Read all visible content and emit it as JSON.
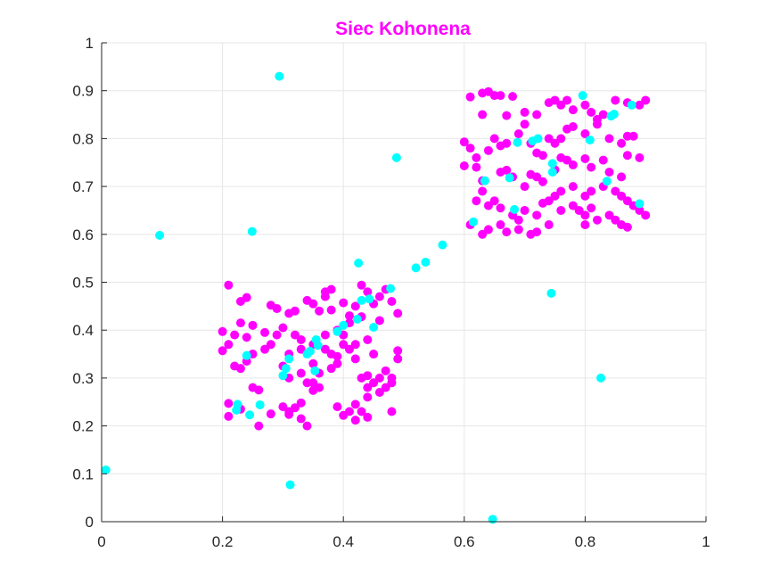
{
  "chart_data": {
    "type": "scatter",
    "title": "Siec Kohonena",
    "title_color": "#ff00ff",
    "xlim": [
      0,
      1
    ],
    "ylim": [
      0,
      1
    ],
    "grid": true,
    "x_ticks": [
      "0",
      "0.2",
      "0.4",
      "0.6",
      "0.8",
      "1"
    ],
    "y_ticks": [
      "0",
      "0.1",
      "0.2",
      "0.3",
      "0.4",
      "0.5",
      "0.6",
      "0.7",
      "0.8",
      "0.9",
      "1"
    ],
    "series": [
      {
        "color": "#ff00ff",
        "points": [
          [
            0.21,
            0.494
          ],
          [
            0.23,
            0.46
          ],
          [
            0.24,
            0.468
          ],
          [
            0.2,
            0.397
          ],
          [
            0.2,
            0.357
          ],
          [
            0.22,
            0.39
          ],
          [
            0.21,
            0.37
          ],
          [
            0.23,
            0.415
          ],
          [
            0.25,
            0.41
          ],
          [
            0.24,
            0.385
          ],
          [
            0.27,
            0.395
          ],
          [
            0.28,
            0.37
          ],
          [
            0.29,
            0.39
          ],
          [
            0.28,
            0.452
          ],
          [
            0.29,
            0.445
          ],
          [
            0.31,
            0.435
          ],
          [
            0.32,
            0.44
          ],
          [
            0.3,
            0.405
          ],
          [
            0.32,
            0.39
          ],
          [
            0.33,
            0.38
          ],
          [
            0.34,
            0.462
          ],
          [
            0.35,
            0.455
          ],
          [
            0.36,
            0.44
          ],
          [
            0.37,
            0.48
          ],
          [
            0.38,
            0.485
          ],
          [
            0.37,
            0.47
          ],
          [
            0.38,
            0.442
          ],
          [
            0.4,
            0.457
          ],
          [
            0.41,
            0.43
          ],
          [
            0.42,
            0.45
          ],
          [
            0.43,
            0.494
          ],
          [
            0.44,
            0.48
          ],
          [
            0.46,
            0.47
          ],
          [
            0.47,
            0.485
          ],
          [
            0.48,
            0.46
          ],
          [
            0.49,
            0.435
          ],
          [
            0.45,
            0.455
          ],
          [
            0.46,
            0.42
          ],
          [
            0.43,
            0.428
          ],
          [
            0.41,
            0.415
          ],
          [
            0.39,
            0.4
          ],
          [
            0.37,
            0.39
          ],
          [
            0.35,
            0.37
          ],
          [
            0.33,
            0.36
          ],
          [
            0.31,
            0.35
          ],
          [
            0.3,
            0.325
          ],
          [
            0.31,
            0.3
          ],
          [
            0.33,
            0.31
          ],
          [
            0.34,
            0.29
          ],
          [
            0.35,
            0.33
          ],
          [
            0.36,
            0.31
          ],
          [
            0.38,
            0.32
          ],
          [
            0.39,
            0.345
          ],
          [
            0.37,
            0.36
          ],
          [
            0.39,
            0.33
          ],
          [
            0.4,
            0.39
          ],
          [
            0.42,
            0.37
          ],
          [
            0.41,
            0.36
          ],
          [
            0.44,
            0.38
          ],
          [
            0.45,
            0.35
          ],
          [
            0.42,
            0.34
          ],
          [
            0.43,
            0.3
          ],
          [
            0.44,
            0.305
          ],
          [
            0.45,
            0.29
          ],
          [
            0.46,
            0.3
          ],
          [
            0.47,
            0.28
          ],
          [
            0.48,
            0.29
          ],
          [
            0.49,
            0.34
          ],
          [
            0.47,
            0.315
          ],
          [
            0.49,
            0.357
          ],
          [
            0.44,
            0.28
          ],
          [
            0.46,
            0.27
          ],
          [
            0.22,
            0.325
          ],
          [
            0.23,
            0.32
          ],
          [
            0.24,
            0.335
          ],
          [
            0.25,
            0.35
          ],
          [
            0.27,
            0.36
          ],
          [
            0.26,
            0.275
          ],
          [
            0.21,
            0.247
          ],
          [
            0.21,
            0.22
          ],
          [
            0.23,
            0.235
          ],
          [
            0.25,
            0.28
          ],
          [
            0.26,
            0.2
          ],
          [
            0.28,
            0.225
          ],
          [
            0.3,
            0.24
          ],
          [
            0.31,
            0.23
          ],
          [
            0.32,
            0.238
          ],
          [
            0.31,
            0.224
          ],
          [
            0.33,
            0.248
          ],
          [
            0.33,
            0.215
          ],
          [
            0.35,
            0.274
          ],
          [
            0.35,
            0.29
          ],
          [
            0.34,
            0.2
          ],
          [
            0.36,
            0.28
          ],
          [
            0.39,
            0.24
          ],
          [
            0.4,
            0.222
          ],
          [
            0.41,
            0.23
          ],
          [
            0.42,
            0.245
          ],
          [
            0.42,
            0.212
          ],
          [
            0.44,
            0.218
          ],
          [
            0.43,
            0.23
          ],
          [
            0.48,
            0.23
          ],
          [
            0.44,
            0.26
          ],
          [
            0.48,
            0.3
          ],
          [
            0.4,
            0.37
          ],
          [
            0.38,
            0.35
          ],
          [
            0.61,
            0.887
          ],
          [
            0.63,
            0.895
          ],
          [
            0.64,
            0.898
          ],
          [
            0.65,
            0.89
          ],
          [
            0.66,
            0.89
          ],
          [
            0.63,
            0.85
          ],
          [
            0.68,
            0.888
          ],
          [
            0.7,
            0.855
          ],
          [
            0.67,
            0.848
          ],
          [
            0.72,
            0.85
          ],
          [
            0.74,
            0.875
          ],
          [
            0.75,
            0.88
          ],
          [
            0.76,
            0.87
          ],
          [
            0.77,
            0.88
          ],
          [
            0.78,
            0.86
          ],
          [
            0.8,
            0.87
          ],
          [
            0.81,
            0.855
          ],
          [
            0.82,
            0.84
          ],
          [
            0.83,
            0.85
          ],
          [
            0.85,
            0.88
          ],
          [
            0.87,
            0.875
          ],
          [
            0.89,
            0.87
          ],
          [
            0.9,
            0.88
          ],
          [
            0.6,
            0.793
          ],
          [
            0.61,
            0.78
          ],
          [
            0.62,
            0.76
          ],
          [
            0.64,
            0.775
          ],
          [
            0.65,
            0.8
          ],
          [
            0.66,
            0.785
          ],
          [
            0.67,
            0.79
          ],
          [
            0.69,
            0.81
          ],
          [
            0.7,
            0.83
          ],
          [
            0.71,
            0.79
          ],
          [
            0.72,
            0.77
          ],
          [
            0.73,
            0.765
          ],
          [
            0.74,
            0.8
          ],
          [
            0.75,
            0.79
          ],
          [
            0.76,
            0.8
          ],
          [
            0.77,
            0.82
          ],
          [
            0.78,
            0.825
          ],
          [
            0.8,
            0.81
          ],
          [
            0.82,
            0.83
          ],
          [
            0.84,
            0.8
          ],
          [
            0.86,
            0.79
          ],
          [
            0.87,
            0.805
          ],
          [
            0.88,
            0.805
          ],
          [
            0.87,
            0.765
          ],
          [
            0.89,
            0.76
          ],
          [
            0.6,
            0.743
          ],
          [
            0.62,
            0.74
          ],
          [
            0.63,
            0.712
          ],
          [
            0.66,
            0.73
          ],
          [
            0.67,
            0.734
          ],
          [
            0.68,
            0.72
          ],
          [
            0.7,
            0.7
          ],
          [
            0.71,
            0.725
          ],
          [
            0.72,
            0.72
          ],
          [
            0.73,
            0.71
          ],
          [
            0.75,
            0.735
          ],
          [
            0.76,
            0.76
          ],
          [
            0.77,
            0.755
          ],
          [
            0.78,
            0.745
          ],
          [
            0.8,
            0.758
          ],
          [
            0.81,
            0.74
          ],
          [
            0.83,
            0.755
          ],
          [
            0.84,
            0.73
          ],
          [
            0.86,
            0.72
          ],
          [
            0.75,
            0.68
          ],
          [
            0.76,
            0.69
          ],
          [
            0.78,
            0.7
          ],
          [
            0.8,
            0.68
          ],
          [
            0.81,
            0.69
          ],
          [
            0.83,
            0.7
          ],
          [
            0.85,
            0.69
          ],
          [
            0.86,
            0.68
          ],
          [
            0.87,
            0.67
          ],
          [
            0.88,
            0.66
          ],
          [
            0.89,
            0.65
          ],
          [
            0.9,
            0.64
          ],
          [
            0.62,
            0.67
          ],
          [
            0.63,
            0.69
          ],
          [
            0.64,
            0.66
          ],
          [
            0.65,
            0.67
          ],
          [
            0.66,
            0.655
          ],
          [
            0.68,
            0.64
          ],
          [
            0.69,
            0.63
          ],
          [
            0.7,
            0.65
          ],
          [
            0.72,
            0.64
          ],
          [
            0.73,
            0.665
          ],
          [
            0.74,
            0.67
          ],
          [
            0.76,
            0.65
          ],
          [
            0.78,
            0.66
          ],
          [
            0.79,
            0.65
          ],
          [
            0.8,
            0.64
          ],
          [
            0.81,
            0.655
          ],
          [
            0.82,
            0.63
          ],
          [
            0.84,
            0.64
          ],
          [
            0.85,
            0.63
          ],
          [
            0.86,
            0.62
          ],
          [
            0.87,
            0.615
          ],
          [
            0.61,
            0.62
          ],
          [
            0.63,
            0.6
          ],
          [
            0.64,
            0.61
          ],
          [
            0.66,
            0.62
          ],
          [
            0.67,
            0.605
          ],
          [
            0.69,
            0.61
          ],
          [
            0.71,
            0.6
          ],
          [
            0.72,
            0.605
          ],
          [
            0.74,
            0.62
          ],
          [
            0.8,
            0.62
          ]
        ]
      },
      {
        "color": "#00ffff",
        "points": [
          [
            0.294,
            0.93
          ],
          [
            0.488,
            0.76
          ],
          [
            0.096,
            0.598
          ],
          [
            0.249,
            0.606
          ],
          [
            0.425,
            0.54
          ],
          [
            0.564,
            0.578
          ],
          [
            0.536,
            0.542
          ],
          [
            0.52,
            0.53
          ],
          [
            0.478,
            0.487
          ],
          [
            0.43,
            0.462
          ],
          [
            0.443,
            0.465
          ],
          [
            0.423,
            0.423
          ],
          [
            0.45,
            0.406
          ],
          [
            0.4,
            0.41
          ],
          [
            0.39,
            0.397
          ],
          [
            0.355,
            0.38
          ],
          [
            0.345,
            0.356
          ],
          [
            0.358,
            0.368
          ],
          [
            0.34,
            0.35
          ],
          [
            0.353,
            0.315
          ],
          [
            0.31,
            0.34
          ],
          [
            0.305,
            0.32
          ],
          [
            0.3,
            0.305
          ],
          [
            0.24,
            0.347
          ],
          [
            0.225,
            0.245
          ],
          [
            0.223,
            0.233
          ],
          [
            0.262,
            0.244
          ],
          [
            0.245,
            0.223
          ],
          [
            0.007,
            0.108
          ],
          [
            0.312,
            0.077
          ],
          [
            0.647,
            0.005
          ],
          [
            0.796,
            0.89
          ],
          [
            0.877,
            0.87
          ],
          [
            0.843,
            0.847
          ],
          [
            0.848,
            0.851
          ],
          [
            0.808,
            0.797
          ],
          [
            0.722,
            0.8
          ],
          [
            0.713,
            0.795
          ],
          [
            0.688,
            0.792
          ],
          [
            0.746,
            0.748
          ],
          [
            0.746,
            0.73
          ],
          [
            0.675,
            0.718
          ],
          [
            0.634,
            0.712
          ],
          [
            0.836,
            0.711
          ],
          [
            0.89,
            0.664
          ],
          [
            0.683,
            0.652
          ],
          [
            0.615,
            0.626
          ],
          [
            0.744,
            0.477
          ],
          [
            0.826,
            0.3
          ]
        ]
      }
    ]
  }
}
